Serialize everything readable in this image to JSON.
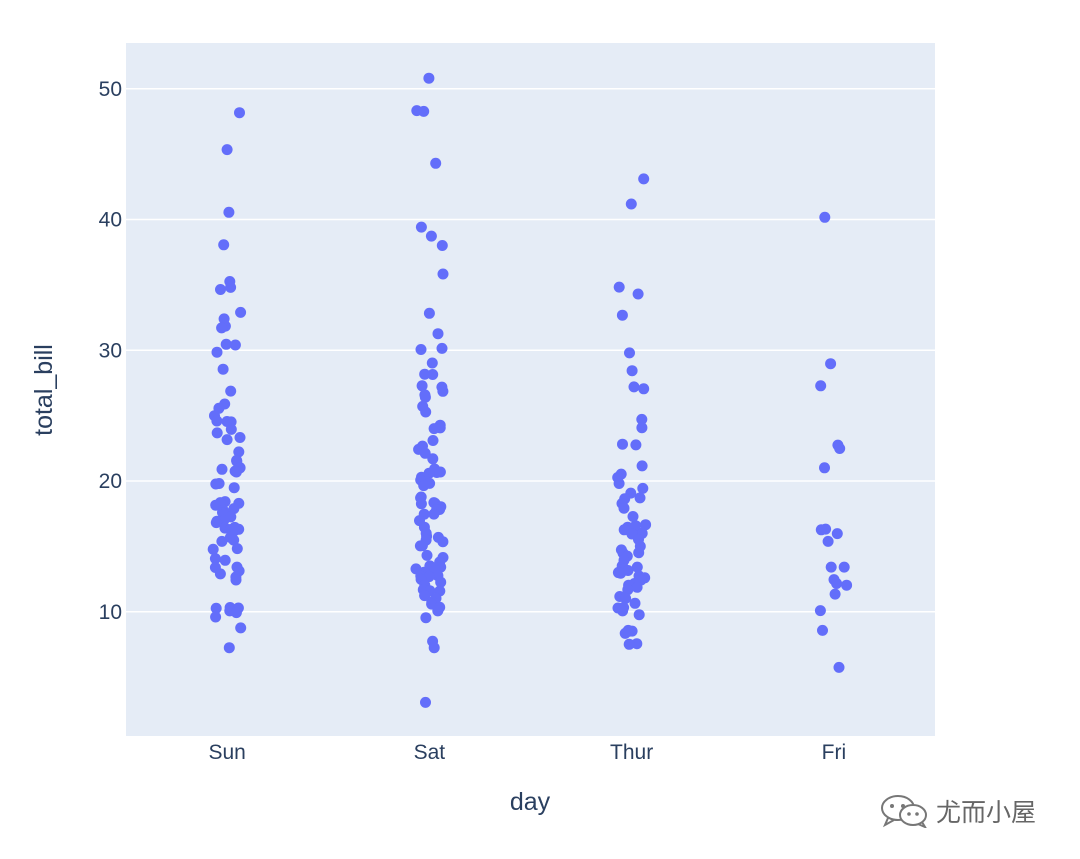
{
  "chart_data": {
    "type": "scatter",
    "mode": "strip",
    "xlabel": "day",
    "ylabel": "total_bill",
    "categories": [
      "Sun",
      "Sat",
      "Thur",
      "Fri"
    ],
    "ylim": [
      0.5,
      53.5
    ],
    "yticks": [
      10,
      20,
      30,
      40,
      50
    ],
    "grid": true,
    "marker_color": "#636efa",
    "background_color": "#e5ecf6",
    "series": [
      {
        "category": "Sun",
        "values": [
          48.17,
          45.35,
          40.55,
          38.07,
          35.26,
          34.81,
          34.65,
          32.9,
          32.4,
          31.85,
          31.71,
          30.46,
          30.4,
          29.85,
          28.55,
          26.88,
          25.89,
          25.56,
          25.0,
          24.59,
          24.55,
          24.52,
          23.95,
          23.68,
          23.33,
          23.17,
          22.23,
          21.58,
          21.5,
          21.01,
          20.9,
          20.76,
          20.69,
          19.81,
          19.77,
          19.49,
          18.43,
          18.35,
          18.29,
          18.15,
          17.89,
          17.78,
          17.59,
          17.51,
          17.47,
          17.26,
          16.99,
          16.93,
          16.82,
          16.45,
          16.4,
          16.31,
          16.29,
          16.21,
          15.69,
          15.48,
          15.38,
          14.83,
          14.78,
          14.07,
          13.94,
          13.42,
          13.39,
          13.13,
          12.9,
          12.66,
          12.43,
          10.33,
          10.29,
          10.27,
          10.07,
          9.94,
          9.6,
          8.77,
          7.25
        ]
      },
      {
        "category": "Sat",
        "values": [
          50.81,
          48.33,
          48.27,
          44.3,
          39.42,
          38.73,
          38.01,
          35.83,
          32.83,
          31.27,
          30.14,
          30.06,
          29.03,
          28.17,
          28.15,
          27.28,
          27.18,
          26.86,
          26.59,
          26.41,
          25.71,
          25.28,
          24.27,
          24.06,
          24.01,
          23.1,
          22.67,
          22.42,
          22.12,
          21.7,
          20.92,
          20.69,
          20.65,
          20.6,
          20.29,
          20.23,
          20.08,
          19.82,
          19.65,
          18.78,
          18.71,
          18.35,
          18.29,
          18.26,
          18.04,
          17.92,
          17.82,
          17.81,
          17.47,
          17.46,
          16.97,
          16.47,
          16.0,
          15.77,
          15.69,
          15.48,
          15.36,
          15.06,
          15.04,
          14.31,
          14.15,
          13.81,
          13.51,
          13.42,
          13.37,
          13.28,
          13.16,
          13.03,
          12.76,
          12.74,
          12.69,
          12.48,
          12.26,
          12.03,
          11.69,
          11.61,
          11.59,
          11.24,
          11.02,
          10.77,
          10.59,
          10.34,
          10.07,
          9.55,
          7.74,
          7.25,
          3.07
        ]
      },
      {
        "category": "Thur",
        "values": [
          43.11,
          41.19,
          34.83,
          34.3,
          32.68,
          29.8,
          28.44,
          27.2,
          27.05,
          24.71,
          24.08,
          22.82,
          22.76,
          21.16,
          20.53,
          20.27,
          19.81,
          19.44,
          19.08,
          18.71,
          18.64,
          18.28,
          17.92,
          17.29,
          16.66,
          16.58,
          16.47,
          16.43,
          16.27,
          16.0,
          15.98,
          15.95,
          15.53,
          15.01,
          14.73,
          14.52,
          14.48,
          14.26,
          13.94,
          13.51,
          13.42,
          13.28,
          13.16,
          13.03,
          13.0,
          12.95,
          12.74,
          12.6,
          12.43,
          12.16,
          12.03,
          11.87,
          11.69,
          11.17,
          11.02,
          10.65,
          10.33,
          10.29,
          10.07,
          9.78,
          8.58,
          8.52,
          8.51,
          8.35,
          7.56,
          7.51
        ]
      },
      {
        "category": "Fri",
        "values": [
          40.17,
          28.97,
          27.28,
          22.75,
          22.49,
          21.01,
          16.32,
          16.27,
          15.98,
          15.38,
          13.42,
          13.42,
          12.46,
          12.16,
          12.03,
          11.35,
          10.09,
          8.58,
          5.75
        ]
      }
    ]
  },
  "watermark": {
    "icon": "wechat-icon",
    "text": "尤而小屋"
  }
}
